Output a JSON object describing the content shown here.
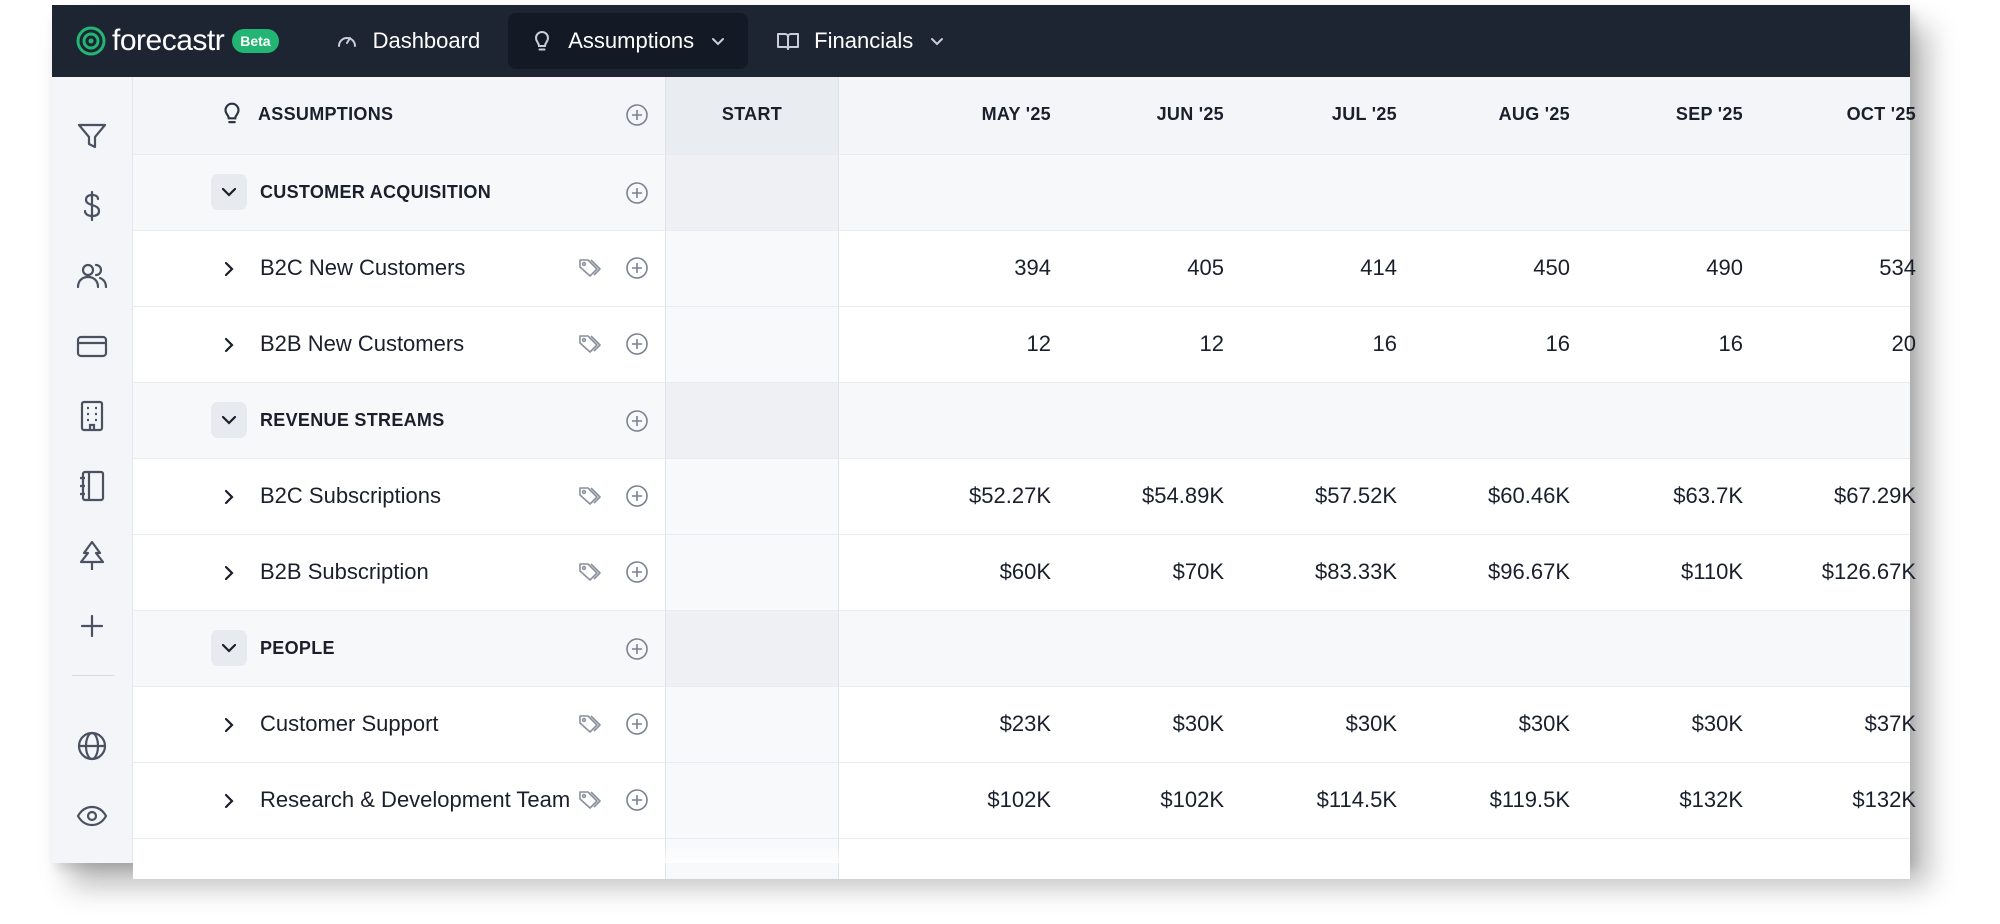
{
  "app": {
    "logo_text": "forecastr",
    "beta_label": "Beta",
    "accent_color": "#22b573",
    "nav_bg": "#1e2532"
  },
  "nav": {
    "dashboard_label": "Dashboard",
    "assumptions_label": "Assumptions",
    "financials_label": "Financials"
  },
  "sidebar": {
    "icons": [
      "filter-icon",
      "dollar-icon",
      "users-icon",
      "credit-card-icon",
      "building-icon",
      "notebook-icon",
      "tree-icon",
      "plus-icon",
      "globe-icon",
      "eye-icon"
    ]
  },
  "table": {
    "header_label": "ASSUMPTIONS",
    "start_label": "START",
    "months": [
      "MAY '25",
      "JUN '25",
      "JUL '25",
      "AUG '25",
      "SEP '25",
      "OCT '25"
    ],
    "groups": [
      {
        "label": "CUSTOMER ACQUISITION",
        "items": [
          {
            "label": "B2C New Customers",
            "values": [
              "394",
              "405",
              "414",
              "450",
              "490",
              "534"
            ]
          },
          {
            "label": "B2B New Customers",
            "values": [
              "12",
              "12",
              "16",
              "16",
              "16",
              "20"
            ]
          }
        ]
      },
      {
        "label": "REVENUE STREAMS",
        "items": [
          {
            "label": "B2C Subscriptions",
            "values": [
              "$52.27K",
              "$54.89K",
              "$57.52K",
              "$60.46K",
              "$63.7K",
              "$67.29K"
            ]
          },
          {
            "label": "B2B Subscription",
            "values": [
              "$60K",
              "$70K",
              "$83.33K",
              "$96.67K",
              "$110K",
              "$126.67K"
            ]
          }
        ]
      },
      {
        "label": "PEOPLE",
        "items": [
          {
            "label": "Customer Support",
            "values": [
              "$23K",
              "$30K",
              "$30K",
              "$30K",
              "$30K",
              "$37K"
            ]
          },
          {
            "label": "Research & Development Team",
            "values": [
              "$102K",
              "$102K",
              "$114.5K",
              "$119.5K",
              "$132K",
              "$132K"
            ]
          }
        ]
      }
    ]
  }
}
